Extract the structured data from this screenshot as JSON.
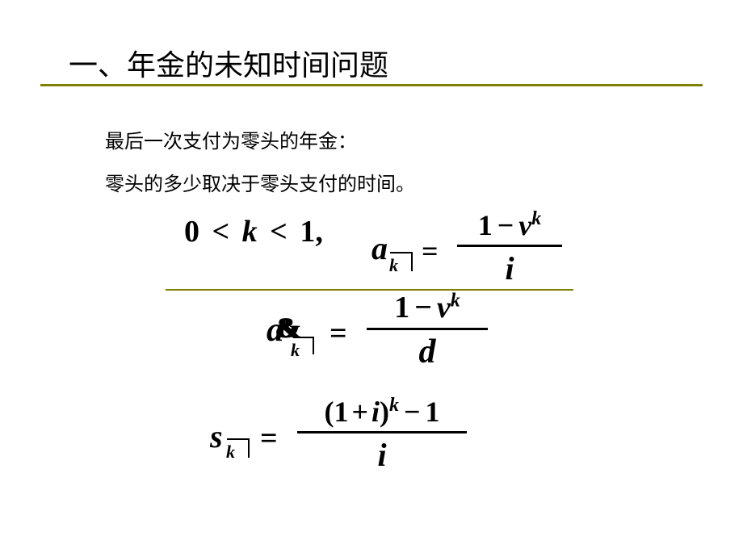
{
  "slide": {
    "title": "一、年金的未知时间问题",
    "line1": "最后一次支付为零头的年金：",
    "line2": "零头的多少取决于零头支付的时间。",
    "colors": {
      "background": "#ffffff",
      "text": "#000000",
      "rule": "#808000"
    },
    "fonts": {
      "title_size_pt": 28,
      "body_size_pt": 18,
      "formula_size_pt": 30,
      "family_cjk": "SimSun",
      "family_math": "Times New Roman"
    }
  },
  "eq1": {
    "zero": "0",
    "lt1": "<",
    "k": "k",
    "lt2": "<",
    "one": "1",
    "comma": ","
  },
  "eq2": {
    "symbol": "a",
    "sub": "k",
    "equals": "=",
    "num_1": "1",
    "num_minus": "−",
    "num_v": "v",
    "num_exp": "k",
    "den": "i"
  },
  "eq3": {
    "glyph_left": "a",
    "overlay": "&",
    "sub": "k",
    "equals": "=",
    "num_1": "1",
    "num_minus": "−",
    "num_v": "v",
    "num_exp": "k",
    "den": "d"
  },
  "eq4": {
    "symbol": "s",
    "sub": "k",
    "equals": "=",
    "num_open": "(",
    "num_1a": "1",
    "num_plus": "+",
    "num_i": "i",
    "num_close": ")",
    "num_exp": "k",
    "num_minus": "−",
    "num_1b": "1",
    "den": "i"
  }
}
